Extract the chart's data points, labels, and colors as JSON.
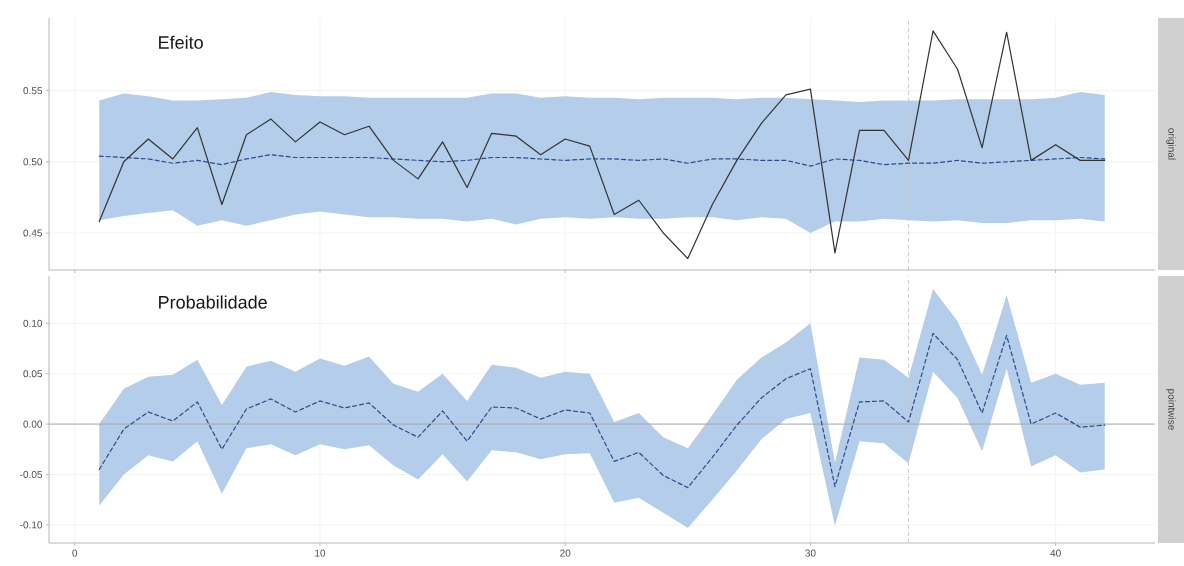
{
  "chart_data": [
    {
      "type": "line",
      "title": "Efeito",
      "annotations": [
        "original"
      ],
      "x": [
        1,
        2,
        3,
        4,
        5,
        6,
        7,
        8,
        9,
        10,
        11,
        12,
        13,
        14,
        15,
        16,
        17,
        18,
        19,
        20,
        21,
        22,
        23,
        24,
        25,
        26,
        27,
        28,
        29,
        30,
        31,
        32,
        33,
        34,
        35,
        36,
        37,
        38,
        39,
        40,
        41,
        42
      ],
      "xlim": [
        -1.05,
        44.05
      ],
      "xticks": [
        0,
        10,
        20,
        30,
        40
      ],
      "ylim": [
        0.424,
        0.601
      ],
      "yticks": [
        {
          "value": 0.45,
          "label": "0.45"
        },
        {
          "value": 0.5,
          "label": "0.50"
        },
        {
          "value": 0.55,
          "label": "0.55"
        }
      ],
      "grid": true,
      "tick_labels": "y",
      "ref_lines": [
        {
          "axis": "x",
          "value": 34,
          "color": "#c8c8c8",
          "line_style": "dashed"
        }
      ],
      "series": [
        {
          "color": "#2b4a8b",
          "line_style": "dashed",
          "values": [
            0.504,
            0.503,
            0.502,
            0.499,
            0.501,
            0.498,
            0.502,
            0.505,
            0.503,
            0.503,
            0.503,
            0.503,
            0.502,
            0.501,
            0.5,
            0.501,
            0.503,
            0.503,
            0.502,
            0.501,
            0.502,
            0.502,
            0.501,
            0.502,
            0.499,
            0.502,
            0.502,
            0.501,
            0.501,
            0.497,
            0.502,
            0.501,
            0.498,
            0.499,
            0.499,
            0.501,
            0.499,
            0.5,
            0.501,
            0.502,
            0.503,
            0.502
          ],
          "upper": [
            0.543,
            0.548,
            0.546,
            0.543,
            0.543,
            0.544,
            0.545,
            0.549,
            0.547,
            0.546,
            0.546,
            0.545,
            0.545,
            0.545,
            0.545,
            0.545,
            0.548,
            0.548,
            0.545,
            0.546,
            0.545,
            0.545,
            0.544,
            0.545,
            0.545,
            0.545,
            0.544,
            0.545,
            0.545,
            0.544,
            0.543,
            0.542,
            0.543,
            0.543,
            0.543,
            0.544,
            0.544,
            0.544,
            0.544,
            0.545,
            0.549,
            0.547
          ],
          "lower": [
            0.459,
            0.462,
            0.464,
            0.466,
            0.455,
            0.459,
            0.455,
            0.459,
            0.463,
            0.465,
            0.463,
            0.461,
            0.461,
            0.46,
            0.46,
            0.458,
            0.46,
            0.456,
            0.46,
            0.461,
            0.46,
            0.461,
            0.46,
            0.46,
            0.461,
            0.461,
            0.459,
            0.461,
            0.46,
            0.45,
            0.458,
            0.458,
            0.46,
            0.459,
            0.458,
            0.459,
            0.457,
            0.457,
            0.459,
            0.459,
            0.46,
            0.458
          ]
        },
        {
          "color": "#333333",
          "line_style": "solid",
          "values": [
            0.458,
            0.5,
            0.516,
            0.502,
            0.524,
            0.47,
            0.519,
            0.53,
            0.514,
            0.528,
            0.519,
            0.525,
            0.501,
            0.488,
            0.514,
            0.482,
            0.52,
            0.518,
            0.505,
            0.516,
            0.511,
            0.463,
            0.473,
            0.45,
            0.432,
            0.47,
            0.501,
            0.527,
            0.547,
            0.551,
            0.436,
            0.522,
            0.522,
            0.501,
            0.592,
            0.565,
            0.51,
            0.591,
            0.501,
            0.512,
            0.501,
            0.501
          ]
        }
      ]
    },
    {
      "type": "line",
      "title": "Probabilidade",
      "annotations": [
        "pointwise"
      ],
      "x": [
        1,
        2,
        3,
        4,
        5,
        6,
        7,
        8,
        9,
        10,
        11,
        12,
        13,
        14,
        15,
        16,
        17,
        18,
        19,
        20,
        21,
        22,
        23,
        24,
        25,
        26,
        27,
        28,
        29,
        30,
        31,
        32,
        33,
        34,
        35,
        36,
        37,
        38,
        39,
        40,
        41,
        42
      ],
      "xlim": [
        -1.05,
        44.05
      ],
      "xticks": [
        0,
        10,
        20,
        30,
        40
      ],
      "ylim": [
        -0.118,
        0.147
      ],
      "yticks": [
        {
          "value": -0.1,
          "label": "-0.10"
        },
        {
          "value": -0.05,
          "label": "-0.05"
        },
        {
          "value": 0,
          "label": "0.00"
        },
        {
          "value": 0.05,
          "label": "0.05"
        },
        {
          "value": 0.1,
          "label": "0.10"
        }
      ],
      "grid": true,
      "ref_lines": [
        {
          "axis": "y",
          "value": 0,
          "color": "#a0a0a0",
          "line_style": "solid"
        },
        {
          "axis": "x",
          "value": 34,
          "color": "#c8c8c8",
          "line_style": "dashed"
        }
      ],
      "series": [
        {
          "color": "#2b4a8b",
          "line_style": "dashed",
          "values": [
            -0.045,
            -0.005,
            0.012,
            0.003,
            0.022,
            -0.025,
            0.015,
            0.025,
            0.012,
            0.023,
            0.016,
            0.021,
            -0.001,
            -0.013,
            0.013,
            -0.017,
            0.017,
            0.016,
            0.005,
            0.014,
            0.011,
            -0.037,
            -0.028,
            -0.051,
            -0.063,
            -0.033,
            -0.001,
            0.026,
            0.045,
            0.055,
            -0.062,
            0.022,
            0.023,
            0.002,
            0.09,
            0.064,
            0.011,
            0.088,
            0.0,
            0.011,
            -0.003,
            -0.001
          ],
          "upper": [
            0.0,
            0.035,
            0.047,
            0.049,
            0.064,
            0.019,
            0.057,
            0.063,
            0.052,
            0.065,
            0.058,
            0.067,
            0.04,
            0.032,
            0.05,
            0.023,
            0.059,
            0.056,
            0.046,
            0.052,
            0.05,
            0.002,
            0.011,
            -0.013,
            -0.024,
            0.009,
            0.044,
            0.066,
            0.081,
            0.1,
            -0.038,
            0.066,
            0.064,
            0.046,
            0.134,
            0.102,
            0.049,
            0.128,
            0.041,
            0.05,
            0.039,
            0.041
          ],
          "lower": [
            -0.081,
            -0.05,
            -0.031,
            -0.037,
            -0.017,
            -0.069,
            -0.024,
            -0.02,
            -0.031,
            -0.02,
            -0.025,
            -0.021,
            -0.041,
            -0.055,
            -0.03,
            -0.057,
            -0.026,
            -0.028,
            -0.035,
            -0.03,
            -0.029,
            -0.078,
            -0.073,
            -0.088,
            -0.103,
            -0.075,
            -0.046,
            -0.015,
            0.005,
            0.011,
            -0.101,
            -0.017,
            -0.019,
            -0.039,
            0.052,
            0.026,
            -0.027,
            0.055,
            -0.042,
            -0.031,
            -0.048,
            -0.045
          ]
        }
      ]
    }
  ]
}
